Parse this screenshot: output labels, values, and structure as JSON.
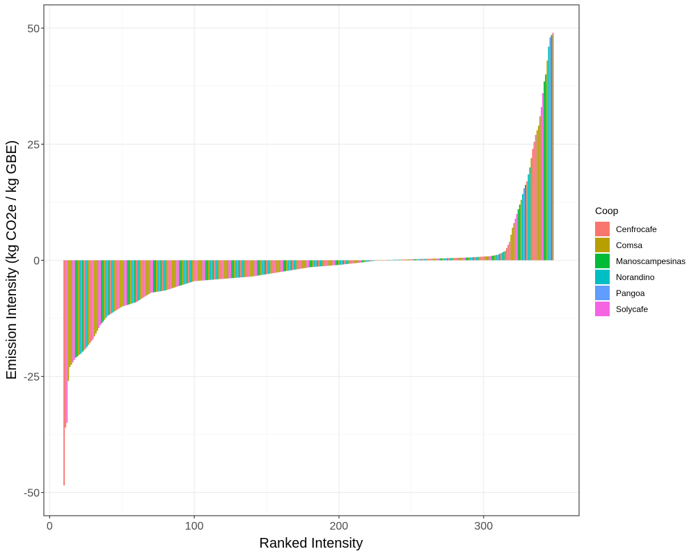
{
  "chart_data": {
    "type": "bar",
    "xlabel": "Ranked Intensity",
    "ylabel": "Emission Intensity (kg CO2e / kg GBE)",
    "xlim": [
      -4,
      366
    ],
    "ylim": [
      -55,
      55
    ],
    "x_ticks": [
      0,
      100,
      200,
      300
    ],
    "y_ticks": [
      -50,
      -25,
      0,
      25,
      50
    ],
    "grid": true,
    "legend": {
      "title": "Coop",
      "position": "right",
      "entries": [
        {
          "name": "Cenfrocafe",
          "color": "#F8766D"
        },
        {
          "name": "Comsa",
          "color": "#B79F00"
        },
        {
          "name": "Manoscampesinas",
          "color": "#00BA38"
        },
        {
          "name": "Norandino",
          "color": "#00BFC4"
        },
        {
          "name": "Pangoa",
          "color": "#619CFF"
        },
        {
          "name": "Solycafe",
          "color": "#F564E3"
        }
      ]
    },
    "rank_start": 10,
    "rank_end": 348,
    "anchor_points": [
      [
        10,
        -48.5
      ],
      [
        11,
        -36
      ],
      [
        12,
        -35
      ],
      [
        13,
        -26
      ],
      [
        14,
        -23
      ],
      [
        15,
        -22.5
      ],
      [
        18,
        -21
      ],
      [
        22,
        -20
      ],
      [
        25,
        -19
      ],
      [
        30,
        -17
      ],
      [
        35,
        -14
      ],
      [
        40,
        -12
      ],
      [
        45,
        -11
      ],
      [
        50,
        -10
      ],
      [
        55,
        -9.5
      ],
      [
        60,
        -9
      ],
      [
        65,
        -8
      ],
      [
        70,
        -7
      ],
      [
        80,
        -6.5
      ],
      [
        90,
        -5.5
      ],
      [
        100,
        -4.5
      ],
      [
        120,
        -4
      ],
      [
        140,
        -3.5
      ],
      [
        160,
        -2.5
      ],
      [
        180,
        -1.5
      ],
      [
        200,
        -1
      ],
      [
        215,
        -0.5
      ],
      [
        225,
        -0.1
      ],
      [
        230,
        0.05
      ],
      [
        260,
        0.3
      ],
      [
        290,
        0.6
      ],
      [
        305,
        0.9
      ],
      [
        310,
        1.2
      ],
      [
        315,
        2
      ],
      [
        318,
        4
      ],
      [
        320,
        7
      ],
      [
        322,
        9
      ],
      [
        324,
        11
      ],
      [
        326,
        13
      ],
      [
        328,
        15.5
      ],
      [
        330,
        17
      ],
      [
        332,
        20
      ],
      [
        334,
        24
      ],
      [
        336,
        27
      ],
      [
        338,
        29
      ],
      [
        340,
        33
      ],
      [
        341,
        36
      ],
      [
        342,
        38.5
      ],
      [
        343,
        40
      ],
      [
        344,
        43
      ],
      [
        345,
        46
      ],
      [
        346,
        48
      ],
      [
        348,
        49
      ]
    ],
    "color_cycle": [
      "Manoscampesinas",
      "Cenfrocafe",
      "Comsa",
      "Norandino",
      "Solycafe",
      "Pangoa",
      "Comsa",
      "Manoscampesinas",
      "Cenfrocafe",
      "Solycafe",
      "Norandino",
      "Comsa"
    ]
  }
}
